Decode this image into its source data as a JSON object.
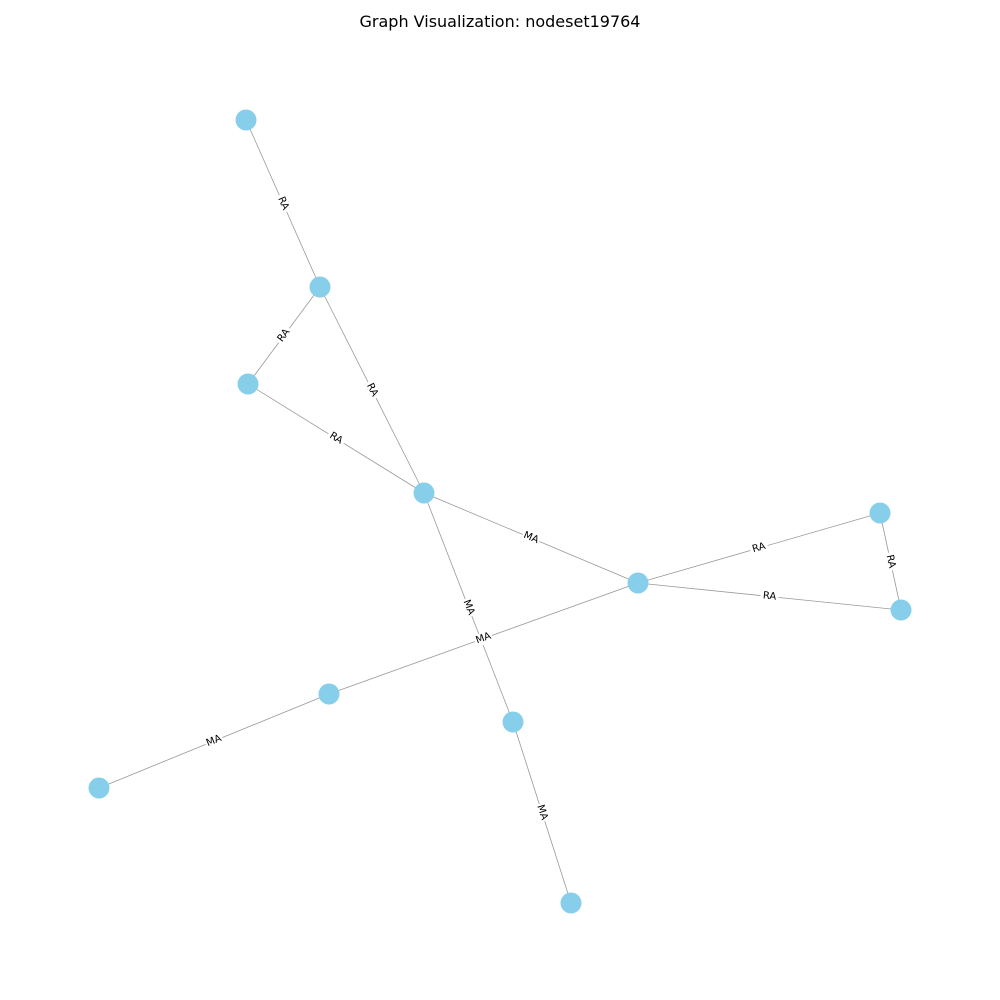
{
  "title": "Graph Visualization: nodeset19764",
  "colors": {
    "node": "#87ceeb",
    "edge": "#999999",
    "label": "#000000",
    "background": "#ffffff"
  },
  "graph": {
    "nodes": [
      {
        "id": "n1"
      },
      {
        "id": "n2"
      },
      {
        "id": "n3"
      },
      {
        "id": "n4"
      },
      {
        "id": "n5"
      },
      {
        "id": "n6"
      },
      {
        "id": "n7"
      },
      {
        "id": "n8"
      },
      {
        "id": "n9"
      },
      {
        "id": "n10"
      },
      {
        "id": "n11"
      }
    ],
    "edges": [
      {
        "source": "n1",
        "target": "n2",
        "label": "RA"
      },
      {
        "source": "n2",
        "target": "n3",
        "label": "RA"
      },
      {
        "source": "n2",
        "target": "n4",
        "label": "RA"
      },
      {
        "source": "n3",
        "target": "n4",
        "label": "RA"
      },
      {
        "source": "n4",
        "target": "n5",
        "label": "MA"
      },
      {
        "source": "n4",
        "target": "n9",
        "label": "MA"
      },
      {
        "source": "n5",
        "target": "n6",
        "label": "RA"
      },
      {
        "source": "n5",
        "target": "n7",
        "label": "RA"
      },
      {
        "source": "n6",
        "target": "n7",
        "label": "RA"
      },
      {
        "source": "n5",
        "target": "n8",
        "label": "MA"
      },
      {
        "source": "n8",
        "target": "n10",
        "label": "MA"
      },
      {
        "source": "n9",
        "target": "n11",
        "label": "MA"
      }
    ]
  }
}
